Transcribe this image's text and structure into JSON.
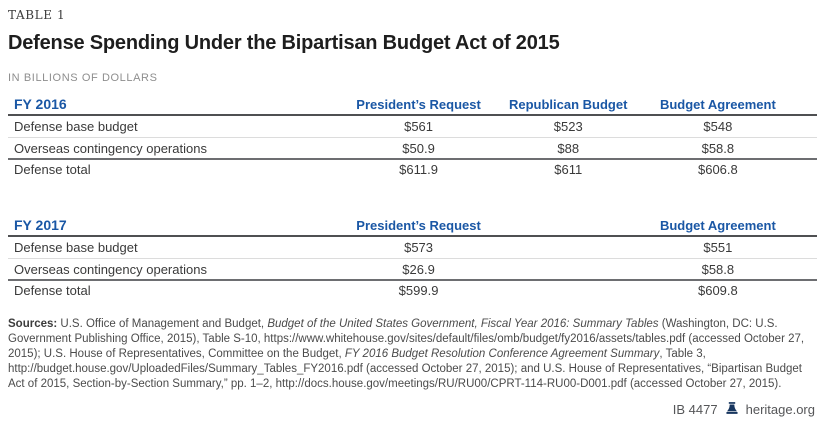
{
  "page": {
    "kicker": "TABLE 1",
    "title": "Defense Spending Under the Bipartisan Budget Act of 2015",
    "subtitle": "IN BILLIONS OF DOLLARS"
  },
  "colors": {
    "accent_blue": "#1a57a5",
    "logo_navy": "#17365f",
    "rule_dark": "#4f5052",
    "rule_light": "#dcdcdc"
  },
  "tables": [
    {
      "year_label": "FY 2016",
      "columns": [
        "President’s Request",
        "Republican Budget",
        "Budget Agreement"
      ],
      "rows": [
        {
          "label": "Defense base budget",
          "values": [
            "$561",
            "$523",
            "$548"
          ],
          "is_total": false
        },
        {
          "label": "Overseas contingency operations",
          "values": [
            "$50.9",
            "$88",
            "$58.8"
          ],
          "is_total": false
        },
        {
          "label": "Defense total",
          "values": [
            "$611.9",
            "$611",
            "$606.8"
          ],
          "is_total": true
        }
      ]
    },
    {
      "year_label": "FY 2017",
      "columns": [
        "President’s Request",
        "Budget Agreement"
      ],
      "rows": [
        {
          "label": "Defense base budget",
          "values": [
            "$573",
            "$551"
          ],
          "is_total": false
        },
        {
          "label": "Overseas contingency operations",
          "values": [
            "$26.9",
            "$58.8"
          ],
          "is_total": false
        },
        {
          "label": "Defense total",
          "values": [
            "$599.9",
            "$609.8"
          ],
          "is_total": true
        }
      ]
    }
  ],
  "sources": {
    "label": "Sources:",
    "segments": [
      {
        "text": " U.S. Office of Management and Budget, ",
        "italic": false
      },
      {
        "text": "Budget of the United States Government, Fiscal Year 2016: Summary Tables",
        "italic": true
      },
      {
        "text": " (Washington, DC: U.S. Government Publishing Office, 2015), Table S-10, https://www.whitehouse.gov/sites/default/files/omb/budget/fy2016/assets/tables.pdf (accessed October 27, 2015); U.S. House of Representatives, Committee on the Budget, ",
        "italic": false
      },
      {
        "text": "FY 2016 Budget Resolution Conference Agreement Summary",
        "italic": true
      },
      {
        "text": ", Table 3, http://budget.house.gov/UploadedFiles/Summary_Tables_FY2016.pdf (accessed October 27, 2015); and U.S. House of Representatives, “Bipartisan Budget Act of 2015, Section-by-Section Summary,” pp. 1–2, http://docs.house.gov/meetings/RU/RU00/CPRT-114-RU00-D001.pdf (accessed October 27, 2015).",
        "italic": false
      }
    ]
  },
  "footer": {
    "doc_id": "IB 4477",
    "site": "heritage.org",
    "logo_icon": "liberty-bell-icon"
  }
}
